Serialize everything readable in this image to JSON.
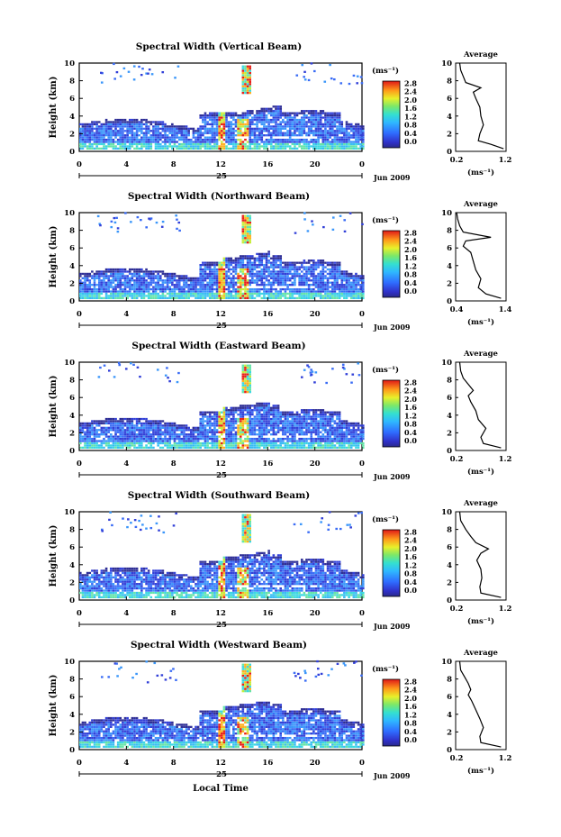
{
  "month_label": "Jun 2009",
  "day_label": "25",
  "x_axis_label": "Local Time",
  "y_axis_label": "Height (km)",
  "unit_label": "(ms⁻¹)",
  "average_title": "Average",
  "colorbar_ticks": [
    "0.0",
    "0.4",
    "0.8",
    "1.2",
    "1.6",
    "2.0",
    "2.4",
    "2.8"
  ],
  "chart_data": [
    {
      "type": "heatmap",
      "title": "Spectral Width (Vertical Beam)",
      "xlabel": "",
      "ylabel": "Height (km)",
      "x_ticks": [
        "0",
        "4",
        "8",
        "12",
        "16",
        "20",
        "0"
      ],
      "y_ticks": [
        "0",
        "2",
        "4",
        "6",
        "8",
        "10"
      ],
      "xlim": [
        0,
        24
      ],
      "ylim": [
        0,
        10
      ],
      "colorbar": {
        "label": "(ms⁻¹)",
        "range": [
          0,
          3.0
        ]
      },
      "average_profile": {
        "title": "Average",
        "xlabel": "(ms⁻¹)",
        "x_ticks": [
          "0.2",
          "1.2"
        ],
        "xlim": [
          0.2,
          1.2
        ],
        "ylim": [
          0,
          10
        ],
        "height_km": [
          0.3,
          0.8,
          1.2,
          2,
          3,
          4,
          5,
          6,
          6.7,
          7.2,
          7.8,
          8.5,
          9.2,
          10
        ],
        "width_ms": [
          1.15,
          0.9,
          0.65,
          0.68,
          0.75,
          0.7,
          0.68,
          0.6,
          0.55,
          0.7,
          0.4,
          0.35,
          0.3,
          0.28
        ]
      }
    },
    {
      "type": "heatmap",
      "title": "Spectral Width (Northward Beam)",
      "xlabel": "",
      "ylabel": "Height (km)",
      "x_ticks": [
        "0",
        "4",
        "8",
        "12",
        "16",
        "20",
        "0"
      ],
      "y_ticks": [
        "0",
        "2",
        "4",
        "6",
        "8",
        "10"
      ],
      "xlim": [
        0,
        24
      ],
      "ylim": [
        0,
        10
      ],
      "colorbar": {
        "label": "(ms⁻¹)",
        "range": [
          0,
          3.0
        ]
      },
      "average_profile": {
        "title": "Average",
        "xlabel": "(ms⁻¹)",
        "x_ticks": [
          "0.4",
          "1.4"
        ],
        "xlim": [
          0.4,
          1.4
        ],
        "ylim": [
          0,
          10
        ],
        "height_km": [
          0.3,
          0.8,
          1.5,
          2.5,
          3.5,
          4.5,
          5.5,
          6.2,
          6.8,
          7.2,
          7.8,
          8.5,
          9.3,
          10
        ],
        "width_ms": [
          1.3,
          1.0,
          0.85,
          0.9,
          0.8,
          0.75,
          0.7,
          0.55,
          0.6,
          1.1,
          0.55,
          0.48,
          0.44,
          0.42
        ]
      }
    },
    {
      "type": "heatmap",
      "title": "Spectral Width (Eastward Beam)",
      "xlabel": "",
      "ylabel": "Height (km)",
      "x_ticks": [
        "0",
        "4",
        "8",
        "12",
        "16",
        "20",
        "0"
      ],
      "y_ticks": [
        "0",
        "2",
        "4",
        "6",
        "8",
        "10"
      ],
      "xlim": [
        0,
        24
      ],
      "ylim": [
        0,
        10
      ],
      "colorbar": {
        "label": "(ms⁻¹)",
        "range": [
          0,
          3.0
        ]
      },
      "average_profile": {
        "title": "Average",
        "xlabel": "(ms⁻¹)",
        "x_ticks": [
          "0.2",
          "1.2"
        ],
        "xlim": [
          0.2,
          1.2
        ],
        "ylim": [
          0,
          10
        ],
        "height_km": [
          0.3,
          0.8,
          1.5,
          2.5,
          3.5,
          4.5,
          5.5,
          6.2,
          6.8,
          7.5,
          8.2,
          9,
          10
        ],
        "width_ms": [
          1.1,
          0.75,
          0.7,
          0.8,
          0.65,
          0.6,
          0.5,
          0.45,
          0.55,
          0.45,
          0.35,
          0.3,
          0.28
        ]
      }
    },
    {
      "type": "heatmap",
      "title": "Spectral Width (Southward Beam)",
      "xlabel": "",
      "ylabel": "Height (km)",
      "x_ticks": [
        "0",
        "4",
        "8",
        "12",
        "16",
        "20",
        "0"
      ],
      "y_ticks": [
        "0",
        "2",
        "4",
        "6",
        "8",
        "10"
      ],
      "xlim": [
        0,
        24
      ],
      "ylim": [
        0,
        10
      ],
      "colorbar": {
        "label": "(ms⁻¹)",
        "range": [
          0,
          3.0
        ]
      },
      "average_profile": {
        "title": "Average",
        "xlabel": "(ms⁻¹)",
        "x_ticks": [
          "0.2",
          "1.2"
        ],
        "xlim": [
          0.2,
          1.2
        ],
        "ylim": [
          0,
          10
        ],
        "height_km": [
          0.3,
          0.8,
          1.5,
          2.5,
          3.5,
          4.5,
          5.3,
          5.8,
          6.5,
          7.2,
          8,
          9,
          10
        ],
        "width_ms": [
          1.1,
          0.7,
          0.68,
          0.72,
          0.7,
          0.62,
          0.7,
          0.85,
          0.6,
          0.5,
          0.4,
          0.3,
          0.28
        ]
      }
    },
    {
      "type": "heatmap",
      "title": "Spectral Width (Westward Beam)",
      "xlabel": "Local Time",
      "ylabel": "Height (km)",
      "x_ticks": [
        "0",
        "4",
        "8",
        "12",
        "16",
        "20",
        "0"
      ],
      "y_ticks": [
        "0",
        "2",
        "4",
        "6",
        "8",
        "10"
      ],
      "xlim": [
        0,
        24
      ],
      "ylim": [
        0,
        10
      ],
      "colorbar": {
        "label": "(ms⁻¹)",
        "range": [
          0,
          3.0
        ]
      },
      "average_profile": {
        "title": "Average",
        "xlabel": "(ms⁻¹)",
        "x_ticks": [
          "0.2",
          "1.2"
        ],
        "xlim": [
          0.2,
          1.2
        ],
        "ylim": [
          0,
          10
        ],
        "height_km": [
          0.3,
          0.8,
          1.5,
          2.5,
          3.5,
          4.5,
          5.5,
          6.2,
          6.8,
          7.5,
          8.2,
          9,
          10
        ],
        "width_ms": [
          1.1,
          0.7,
          0.68,
          0.75,
          0.68,
          0.6,
          0.52,
          0.45,
          0.5,
          0.45,
          0.38,
          0.3,
          0.28
        ]
      }
    }
  ]
}
